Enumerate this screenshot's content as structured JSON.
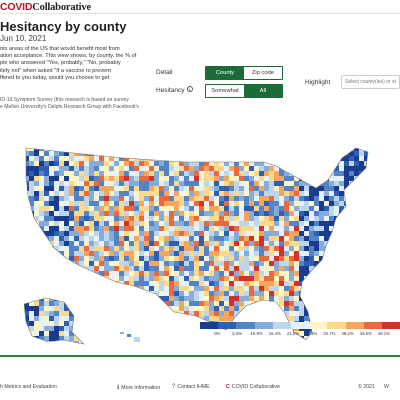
{
  "header": {
    "logo_text": "COVID",
    "logo_brand": "Collaborative"
  },
  "page": {
    "title": "Hesitancy by county",
    "date": "Jun 10, 2021",
    "description_lines": [
      "nts areas of the US that would benefit most from",
      "ation acceptance. This view shows, by county, the % of",
      "ple who answered \"Yes, probably,\" \"No, probably",
      "itely not\" when asked \"If a vaccine to prevent",
      "ffered to you today, would you choose to get"
    ],
    "source_lines": [
      "ID-19 Symptom Survey (this research is based on survey",
      "e Mellon University's Delphi Research Group with Facebook's"
    ]
  },
  "controls": {
    "detail_label": "Detail",
    "detail_options": [
      "County",
      "Zip code"
    ],
    "hesitancy_label": "Hesitancy",
    "hesitancy_options": [
      "Somewhat",
      "All"
    ],
    "highlight_label": "Highlight",
    "highlight_placeholder": "Select county(ies) or st"
  },
  "legend": {
    "ticks": [
      "0%",
      "5.5%",
      "10.9%",
      "16.4%",
      "21.8%",
      "27.3%",
      "32.7%",
      "38.2%",
      "43.6%",
      "49.1%"
    ],
    "colors": [
      "#1a3b8f",
      "#2d5fb4",
      "#5384c6",
      "#86acd9",
      "#bdd6ec",
      "#e6f1f7",
      "#fdf5c4",
      "#fbd98a",
      "#f6a55c",
      "#ea6a3c",
      "#d6302a"
    ]
  },
  "footer": {
    "left_text": "h Metrics and Evaluation",
    "more_info": "More information",
    "contact": "Contact IHME",
    "collab": "COVID Collaborative",
    "copyright": "© 2021"
  }
}
